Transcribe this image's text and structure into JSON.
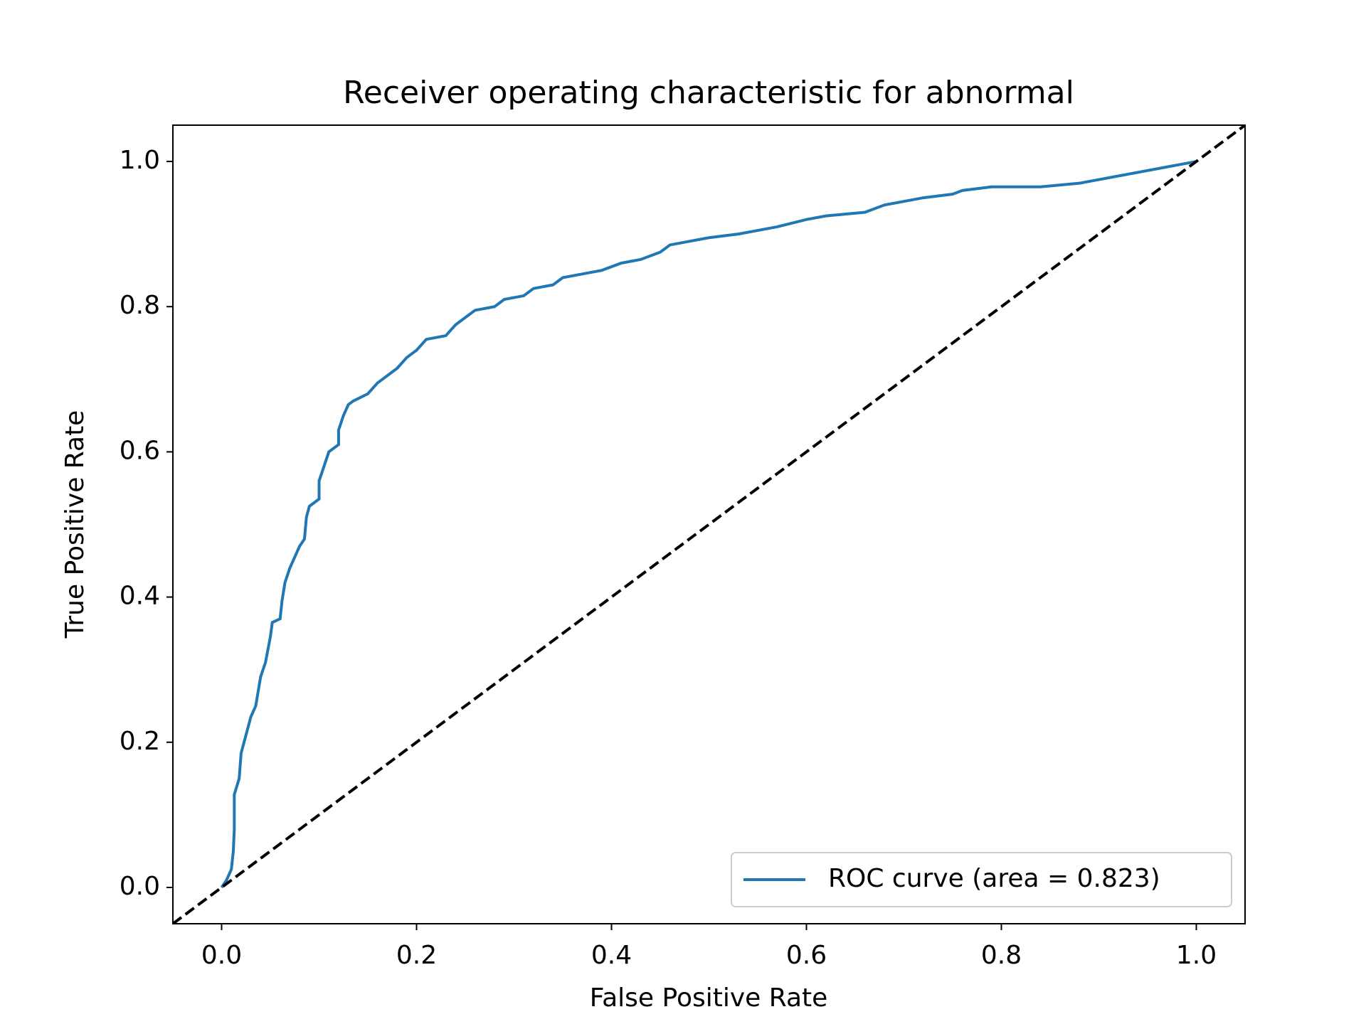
{
  "chart_data": {
    "type": "line",
    "title": "Receiver operating characteristic for abnormal",
    "xlabel": "False Positive Rate",
    "ylabel": "True Positive Rate",
    "xlim": [
      -0.05,
      1.05
    ],
    "ylim": [
      -0.05,
      1.05
    ],
    "xticks": [
      {
        "value": 0,
        "label": "0.0"
      },
      0.2,
      0.4,
      0.6,
      0.8,
      {
        "value": 1,
        "label": "1.0"
      }
    ],
    "yticks": [
      {
        "value": 0,
        "label": "0.0"
      },
      0.2,
      0.4,
      0.6,
      0.8,
      {
        "value": 1,
        "label": "1.0"
      }
    ],
    "legend": "lower right",
    "series": [
      {
        "name": "ROC curve (area = 0.823)",
        "color": "#1f77b4",
        "dash": "solid",
        "x": [
          0,
          0.005,
          0.01,
          0.012,
          0.013,
          0.013,
          0.018,
          0.02,
          0.025,
          0.03,
          0.035,
          0.04,
          0.045,
          0.05,
          0.052,
          0.06,
          0.062,
          0.065,
          0.07,
          0.075,
          0.08,
          0.085,
          0.087,
          0.09,
          0.1,
          0.1,
          0.105,
          0.11,
          0.12,
          0.12,
          0.125,
          0.13,
          0.135,
          0.15,
          0.16,
          0.17,
          0.18,
          0.19,
          0.2,
          0.21,
          0.23,
          0.24,
          0.25,
          0.26,
          0.28,
          0.29,
          0.31,
          0.32,
          0.34,
          0.35,
          0.37,
          0.39,
          0.41,
          0.43,
          0.45,
          0.46,
          0.48,
          0.5,
          0.53,
          0.55,
          0.57,
          0.6,
          0.62,
          0.66,
          0.68,
          0.7,
          0.72,
          0.75,
          0.76,
          0.79,
          0.84,
          0.88,
          1.0
        ],
        "values": [
          0,
          0.01,
          0.025,
          0.05,
          0.08,
          0.128,
          0.15,
          0.185,
          0.21,
          0.235,
          0.25,
          0.29,
          0.31,
          0.345,
          0.365,
          0.37,
          0.395,
          0.42,
          0.44,
          0.455,
          0.47,
          0.48,
          0.51,
          0.525,
          0.535,
          0.56,
          0.58,
          0.6,
          0.61,
          0.63,
          0.65,
          0.665,
          0.67,
          0.68,
          0.695,
          0.705,
          0.715,
          0.73,
          0.74,
          0.755,
          0.76,
          0.775,
          0.785,
          0.795,
          0.8,
          0.81,
          0.815,
          0.825,
          0.83,
          0.84,
          0.845,
          0.85,
          0.86,
          0.865,
          0.875,
          0.885,
          0.89,
          0.895,
          0.9,
          0.905,
          0.91,
          0.92,
          0.925,
          0.93,
          0.94,
          0.945,
          0.95,
          0.955,
          0.96,
          0.965,
          0.965,
          0.97,
          1.0
        ]
      },
      {
        "color": "#000000",
        "dash": "dashed",
        "x": [
          -0.05,
          1.05
        ],
        "values": [
          -0.05,
          1.05
        ]
      }
    ]
  }
}
